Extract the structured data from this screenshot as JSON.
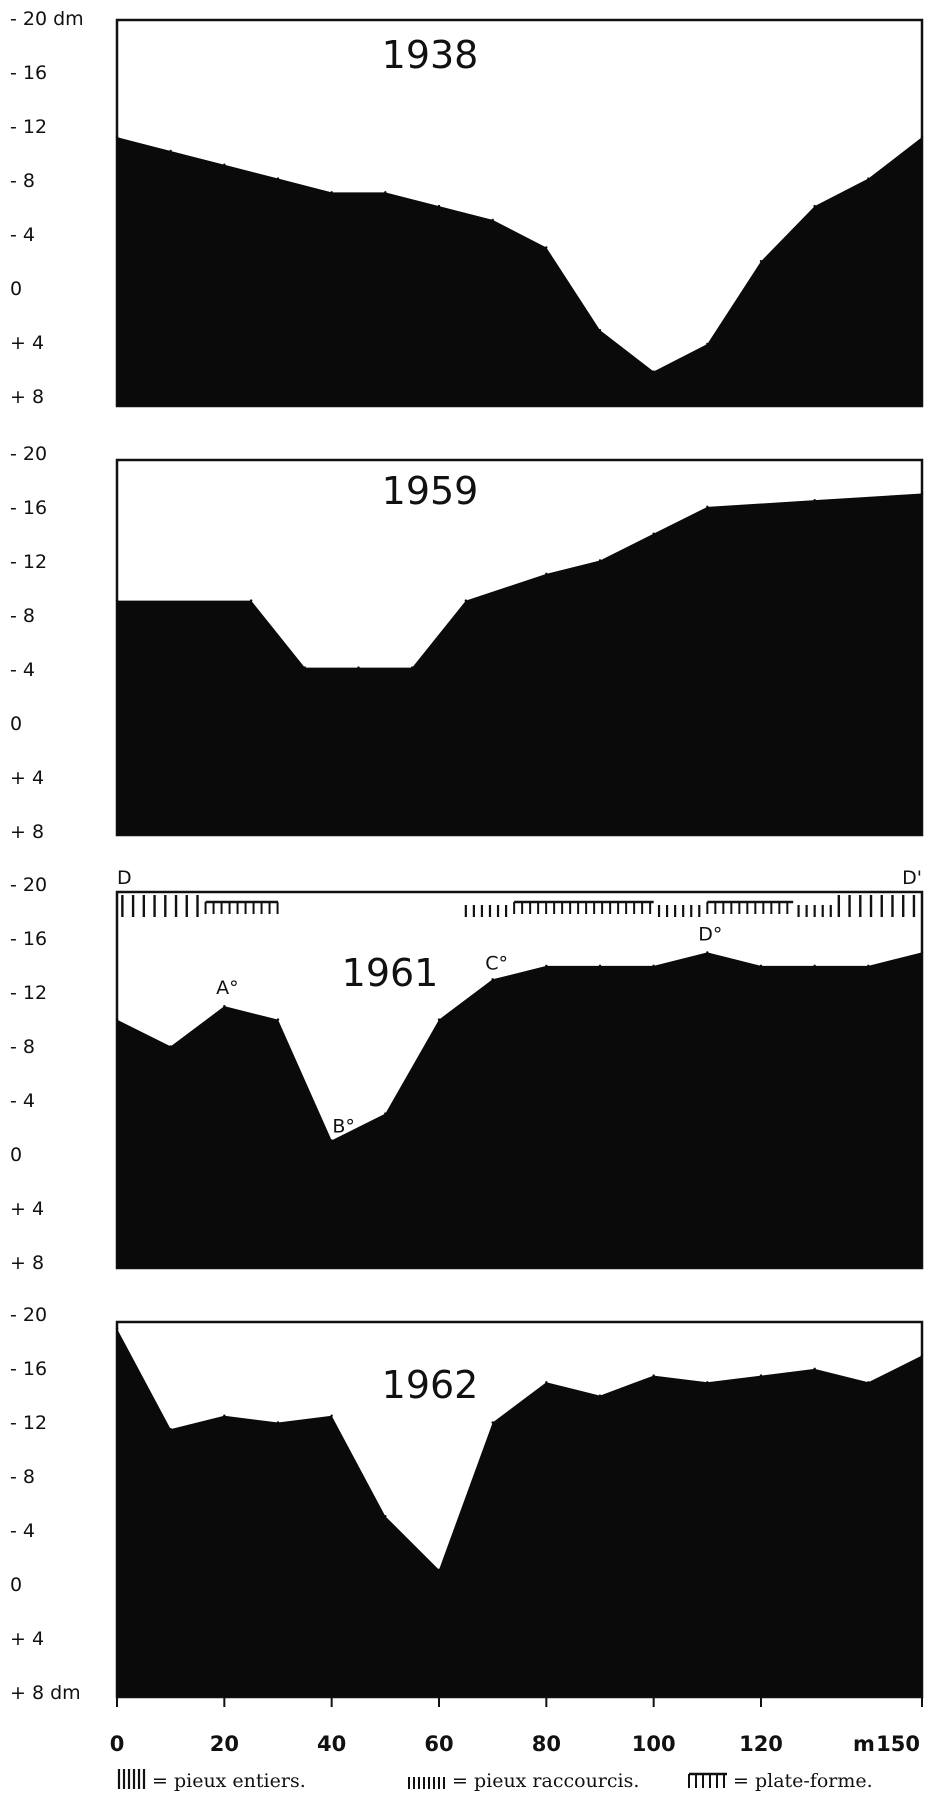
{
  "chart_data": [
    {
      "type": "area",
      "title": "1938",
      "xlim": [
        0,
        150
      ],
      "ylim": [
        -20,
        8
      ],
      "ytick_labels": [
        "- 20 dm",
        "- 16",
        "- 12",
        "- 8",
        "- 4",
        "0",
        "+ 4",
        "+ 8"
      ],
      "x": [
        0,
        10,
        20,
        30,
        40,
        50,
        60,
        70,
        80,
        90,
        100,
        110,
        120,
        130,
        140,
        150
      ],
      "y": [
        -11.5,
        -10.5,
        -9.5,
        -8.5,
        -7.5,
        -7.5,
        -6.5,
        -5.5,
        -3.5,
        2.5,
        5.5,
        3.5,
        -2.5,
        -6.5,
        -8.5,
        -11.5
      ]
    },
    {
      "type": "area",
      "title": "1959",
      "xlim": [
        0,
        150
      ],
      "ylim": [
        -20,
        8
      ],
      "ytick_labels": [
        "- 20",
        "- 16",
        "- 12",
        "- 8",
        "- 4",
        "0",
        "+ 4",
        "+ 8"
      ],
      "x": [
        0,
        25,
        35,
        45,
        55,
        65,
        80,
        90,
        100,
        110,
        130,
        150
      ],
      "y": [
        -9.5,
        -9.5,
        -4.5,
        -4.5,
        -4.5,
        -9.5,
        -11.5,
        -12.5,
        -14.5,
        -16.5,
        -17,
        -17.5
      ]
    },
    {
      "type": "area",
      "title": "1961",
      "xlim": [
        0,
        150
      ],
      "ylim": [
        -20,
        8
      ],
      "ytick_labels": [
        "- 20",
        "- 16",
        "- 12",
        "- 8",
        "- 4",
        "0",
        "+ 4",
        "+ 8"
      ],
      "x": [
        0,
        10,
        20,
        30,
        40,
        50,
        60,
        70,
        80,
        90,
        100,
        110,
        120,
        130,
        140,
        150
      ],
      "y": [
        -10.5,
        -8.5,
        -11.5,
        -10.5,
        -1.5,
        -3.5,
        -10.5,
        -13.5,
        -14.5,
        -14.5,
        -14.5,
        -15.5,
        -14.5,
        -14.5,
        -14.5,
        -15.5
      ],
      "section_labels": [
        "D",
        "D'"
      ],
      "annotations": [
        {
          "label": "A°",
          "x": 20,
          "y": -11.5
        },
        {
          "label": "B°",
          "x": 40,
          "y": -1.5
        },
        {
          "label": "C°",
          "x": 70,
          "y": -13.5
        },
        {
          "label": "D°",
          "x": 110,
          "y": -15.5
        }
      ],
      "piles": [
        {
          "kind": "pieux entiers",
          "x": [
            1,
            3,
            5,
            7,
            9,
            11,
            13,
            15
          ]
        },
        {
          "kind": "plate-forme",
          "x": [
            16.5,
            30
          ]
        },
        {
          "kind": "pieux raccourcis",
          "x": [
            65,
            66.5,
            68,
            69.5,
            71,
            72.5
          ]
        },
        {
          "kind": "plate-forme",
          "x": [
            74,
            100
          ]
        },
        {
          "kind": "pieux raccourcis",
          "x": [
            101,
            102.5,
            104,
            105.5,
            107,
            108.5
          ]
        },
        {
          "kind": "plate-forme",
          "x": [
            110,
            126
          ]
        },
        {
          "kind": "pieux raccourcis",
          "x": [
            127,
            128.5,
            130,
            131.5,
            133
          ]
        },
        {
          "kind": "pieux entiers",
          "x": [
            134.5,
            136.5,
            138.5,
            140.5,
            142.5,
            144.5,
            146.5,
            148.5
          ]
        }
      ]
    },
    {
      "type": "area",
      "title": "1962",
      "xlim": [
        0,
        150
      ],
      "ylim": [
        -20,
        8
      ],
      "ytick_labels": [
        "- 20",
        "- 16",
        "- 12",
        "- 8",
        "- 4",
        "0",
        "+ 4",
        "+ 8 dm"
      ],
      "x": [
        0,
        10,
        20,
        30,
        40,
        50,
        60,
        70,
        80,
        90,
        100,
        110,
        120,
        130,
        140,
        150
      ],
      "y": [
        -19.5,
        -12,
        -13,
        -12.5,
        -13,
        -5.5,
        -1.5,
        -12.5,
        -15.5,
        -14.5,
        -16,
        -15.5,
        -16,
        -16.5,
        -15.5,
        -17.5
      ],
      "xtick_labels": [
        "0",
        "20",
        "40",
        "60",
        "80",
        "100",
        "120",
        "150"
      ],
      "x_unit": "m"
    }
  ],
  "legend": [
    {
      "symbol": "entiers",
      "text": "= pieux entiers."
    },
    {
      "symbol": "raccourcis",
      "text": "= pieux raccourcis."
    },
    {
      "symbol": "plateforme",
      "text": "= plate-forme."
    }
  ]
}
